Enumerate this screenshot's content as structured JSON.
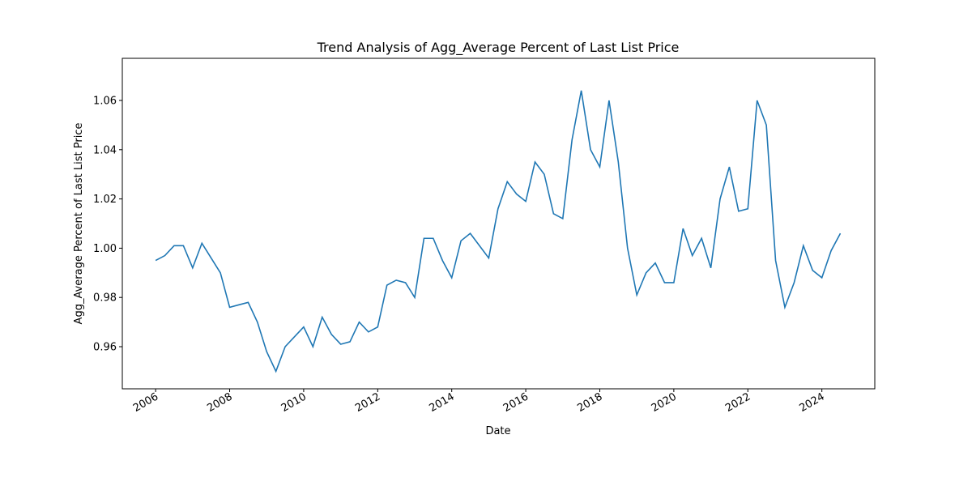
{
  "chart_data": {
    "type": "line",
    "title": "Trend Analysis of Agg_Average Percent of Last List Price",
    "x_label": "Date",
    "y_label": "Agg_Average Percent of Last List Price",
    "x": [
      2006.0,
      2006.25,
      2006.5,
      2006.75,
      2007.0,
      2007.25,
      2007.5,
      2007.75,
      2008.0,
      2008.25,
      2008.5,
      2008.75,
      2009.0,
      2009.25,
      2009.5,
      2009.75,
      2010.0,
      2010.25,
      2010.5,
      2010.75,
      2011.0,
      2011.25,
      2011.5,
      2011.75,
      2012.0,
      2012.25,
      2012.5,
      2012.75,
      2013.0,
      2013.25,
      2013.5,
      2013.75,
      2014.0,
      2014.25,
      2014.5,
      2014.75,
      2015.0,
      2015.25,
      2015.5,
      2015.75,
      2016.0,
      2016.25,
      2016.5,
      2016.75,
      2017.0,
      2017.25,
      2017.5,
      2017.75,
      2018.0,
      2018.25,
      2018.5,
      2018.75,
      2019.0,
      2019.25,
      2019.5,
      2019.75,
      2020.0,
      2020.25,
      2020.5,
      2020.75,
      2021.0,
      2021.25,
      2021.5,
      2021.75,
      2022.0,
      2022.25,
      2022.5,
      2022.75,
      2023.0,
      2023.25,
      2023.5,
      2023.75,
      2024.0,
      2024.25,
      2024.5
    ],
    "series": [
      {
        "name": "Agg_Average Percent of Last List Price",
        "color": "#1f77b4",
        "values": [
          0.995,
          0.997,
          1.001,
          1.001,
          0.992,
          1.002,
          0.996,
          0.99,
          0.976,
          0.977,
          0.978,
          0.97,
          0.958,
          0.95,
          0.96,
          0.964,
          0.968,
          0.96,
          0.972,
          0.965,
          0.961,
          0.962,
          0.97,
          0.966,
          0.968,
          0.985,
          0.987,
          0.986,
          0.98,
          1.004,
          1.004,
          0.995,
          0.988,
          1.003,
          1.006,
          1.001,
          0.996,
          1.016,
          1.027,
          1.022,
          1.019,
          1.035,
          1.03,
          1.014,
          1.012,
          1.044,
          1.064,
          1.04,
          1.033,
          1.06,
          1.035,
          1.0,
          0.981,
          0.99,
          0.994,
          0.986,
          0.986,
          1.008,
          0.997,
          1.004,
          0.992,
          1.02,
          1.033,
          1.015,
          1.016,
          1.06,
          1.05,
          0.995,
          0.976,
          0.986,
          1.001,
          0.991,
          0.988,
          0.999,
          1.006
        ]
      }
    ],
    "xlim": [
      2005.1,
      2025.43
    ],
    "ylim": [
      0.9429,
      1.0771
    ],
    "xticks": [
      2006,
      2008,
      2010,
      2012,
      2014,
      2016,
      2018,
      2020,
      2022,
      2024
    ],
    "yticks": [
      0.96,
      0.98,
      {
        "value": 1,
        "label": "1.00"
      },
      1.02,
      1.04,
      1.06
    ]
  }
}
